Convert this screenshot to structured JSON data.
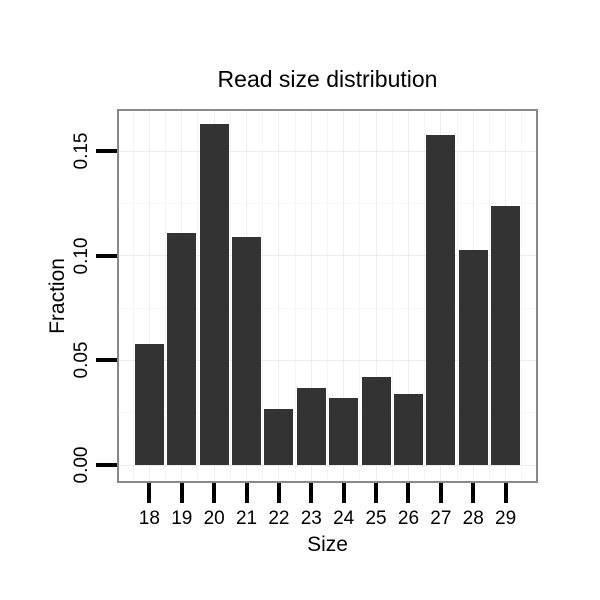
{
  "chart_data": {
    "type": "bar",
    "title": "Read size distribution",
    "xlabel": "Size",
    "ylabel": "Fraction",
    "categories": [
      "18",
      "19",
      "20",
      "21",
      "22",
      "23",
      "24",
      "25",
      "26",
      "27",
      "28",
      "29"
    ],
    "values": [
      0.058,
      0.111,
      0.163,
      0.109,
      0.027,
      0.037,
      0.032,
      0.042,
      0.034,
      0.158,
      0.103,
      0.124
    ],
    "y_ticks": [
      0,
      0.05,
      0.1,
      0.15
    ],
    "y_tick_labels": [
      "0.00",
      "0.05",
      "0.10",
      "0.15"
    ],
    "ylim": [
      -0.0086,
      0.1702
    ],
    "legend": "none",
    "grid": "faint major and minor gridlines",
    "bar_color": "#333333",
    "panel_border_color": "#898989",
    "grid_major_color": "#ededed",
    "grid_minor_color": "#f6f6f6",
    "tick_color": "#000000",
    "text_color": "#000000",
    "background_color": "#ffffff"
  }
}
